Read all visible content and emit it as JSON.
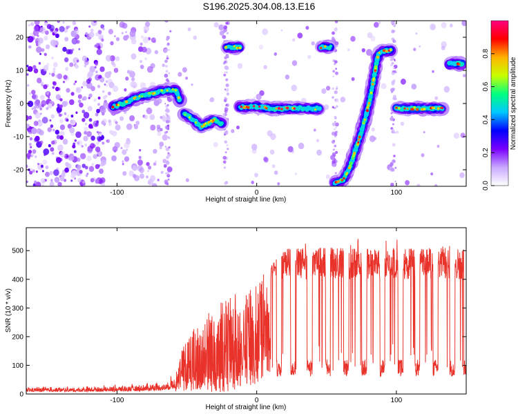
{
  "title": "S196.2025.304.08.13.E16",
  "chart_data": [
    {
      "type": "heatmap",
      "xlabel": "Height of straight line (km)",
      "ylabel": "Frequency (Hz)",
      "xlim": [
        -165,
        150
      ],
      "ylim": [
        -25,
        25
      ],
      "xticks": [
        -100,
        0,
        100
      ],
      "yticks": [
        -20,
        -10,
        0,
        10,
        20
      ],
      "colorbar": {
        "label": "Normalized spectral amplitude",
        "range": [
          0,
          1
        ],
        "ticks": [
          0.0,
          0.2,
          0.4,
          0.6,
          0.8
        ],
        "colors": [
          "#ffffff",
          "#c9a8ff",
          "#7a00ff",
          "#0000ff",
          "#00c8ff",
          "#00ff80",
          "#c8ff00",
          "#ffb400",
          "#ff0000",
          "#ff0080"
        ]
      },
      "ridges": [
        {
          "name": "segment-1",
          "points": [
            [
              -103,
              -1
            ],
            [
              -95,
              0
            ],
            [
              -85,
              2
            ],
            [
              -75,
              3
            ],
            [
              -65,
              4
            ],
            [
              -58,
              4
            ],
            [
              -55,
              1
            ]
          ],
          "amplitude": 0.45
        },
        {
          "name": "segment-2",
          "points": [
            [
              -52,
              -3
            ],
            [
              -45,
              -5
            ],
            [
              -40,
              -7
            ],
            [
              -35,
              -6
            ],
            [
              -30,
              -5
            ],
            [
              -25,
              -6
            ]
          ],
          "amplitude": 0.4
        },
        {
          "name": "segment-3",
          "points": [
            [
              -22,
              17
            ],
            [
              -16,
              17
            ],
            [
              -12,
              17
            ]
          ],
          "amplitude": 0.45
        },
        {
          "name": "segment-4",
          "points": [
            [
              -12,
              -1
            ],
            [
              0,
              -1
            ],
            [
              10,
              -1.5
            ],
            [
              20,
              -1.5
            ],
            [
              30,
              -1.5
            ],
            [
              45,
              -1.5
            ]
          ],
          "amplitude": 0.55
        },
        {
          "name": "segment-5",
          "points": [
            [
              46,
              17
            ],
            [
              50,
              17
            ],
            [
              53,
              17
            ]
          ],
          "amplitude": 0.6
        },
        {
          "name": "segment-6",
          "points": [
            [
              56,
              -24
            ],
            [
              62,
              -23
            ],
            [
              67,
              -19
            ],
            [
              70,
              -15
            ],
            [
              74,
              -10
            ],
            [
              78,
              -4
            ],
            [
              81,
              1
            ],
            [
              84,
              8
            ],
            [
              87,
              15
            ],
            [
              92,
              16
            ],
            [
              96,
              16
            ]
          ],
          "amplitude": 0.45
        },
        {
          "name": "segment-7",
          "points": [
            [
              100,
              -1.5
            ],
            [
              110,
              -1.5
            ],
            [
              120,
              -1.5
            ],
            [
              133,
              -1.5
            ]
          ],
          "amplitude": 0.5
        },
        {
          "name": "segment-8",
          "points": [
            [
              138,
              12
            ],
            [
              142,
              12
            ],
            [
              147,
              12
            ]
          ],
          "amplitude": 0.6
        }
      ]
    },
    {
      "type": "line",
      "xlabel": "Height of straight line (km)",
      "ylabel": "SNR (10 * v/v)",
      "xlim": [
        -165,
        150
      ],
      "ylim": [
        0,
        580
      ],
      "xticks": [
        -100,
        0,
        100
      ],
      "yticks": [
        0,
        100,
        200,
        300,
        400,
        500
      ],
      "color": "#e8322a",
      "envelope": [
        {
          "x": -165,
          "low": 5,
          "high": 40
        },
        {
          "x": -130,
          "low": 5,
          "high": 40
        },
        {
          "x": -90,
          "low": 5,
          "high": 55
        },
        {
          "x": -65,
          "low": 8,
          "high": 70
        },
        {
          "x": -55,
          "low": 10,
          "high": 150
        },
        {
          "x": -45,
          "low": 10,
          "high": 230
        },
        {
          "x": -30,
          "low": 5,
          "high": 320
        },
        {
          "x": -15,
          "low": 5,
          "high": 350
        },
        {
          "x": 0,
          "low": 30,
          "high": 390
        },
        {
          "x": 10,
          "low": 80,
          "high": 450
        },
        {
          "x": 25,
          "low": 80,
          "high": 530
        },
        {
          "x": 50,
          "low": 80,
          "high": 520
        },
        {
          "x": 80,
          "low": 80,
          "high": 550
        },
        {
          "x": 110,
          "low": 80,
          "high": 540
        },
        {
          "x": 150,
          "low": 80,
          "high": 520
        }
      ],
      "dropouts": [
        16,
        26,
        38,
        51,
        64,
        77,
        90,
        103,
        115,
        128,
        140,
        150
      ]
    }
  ]
}
